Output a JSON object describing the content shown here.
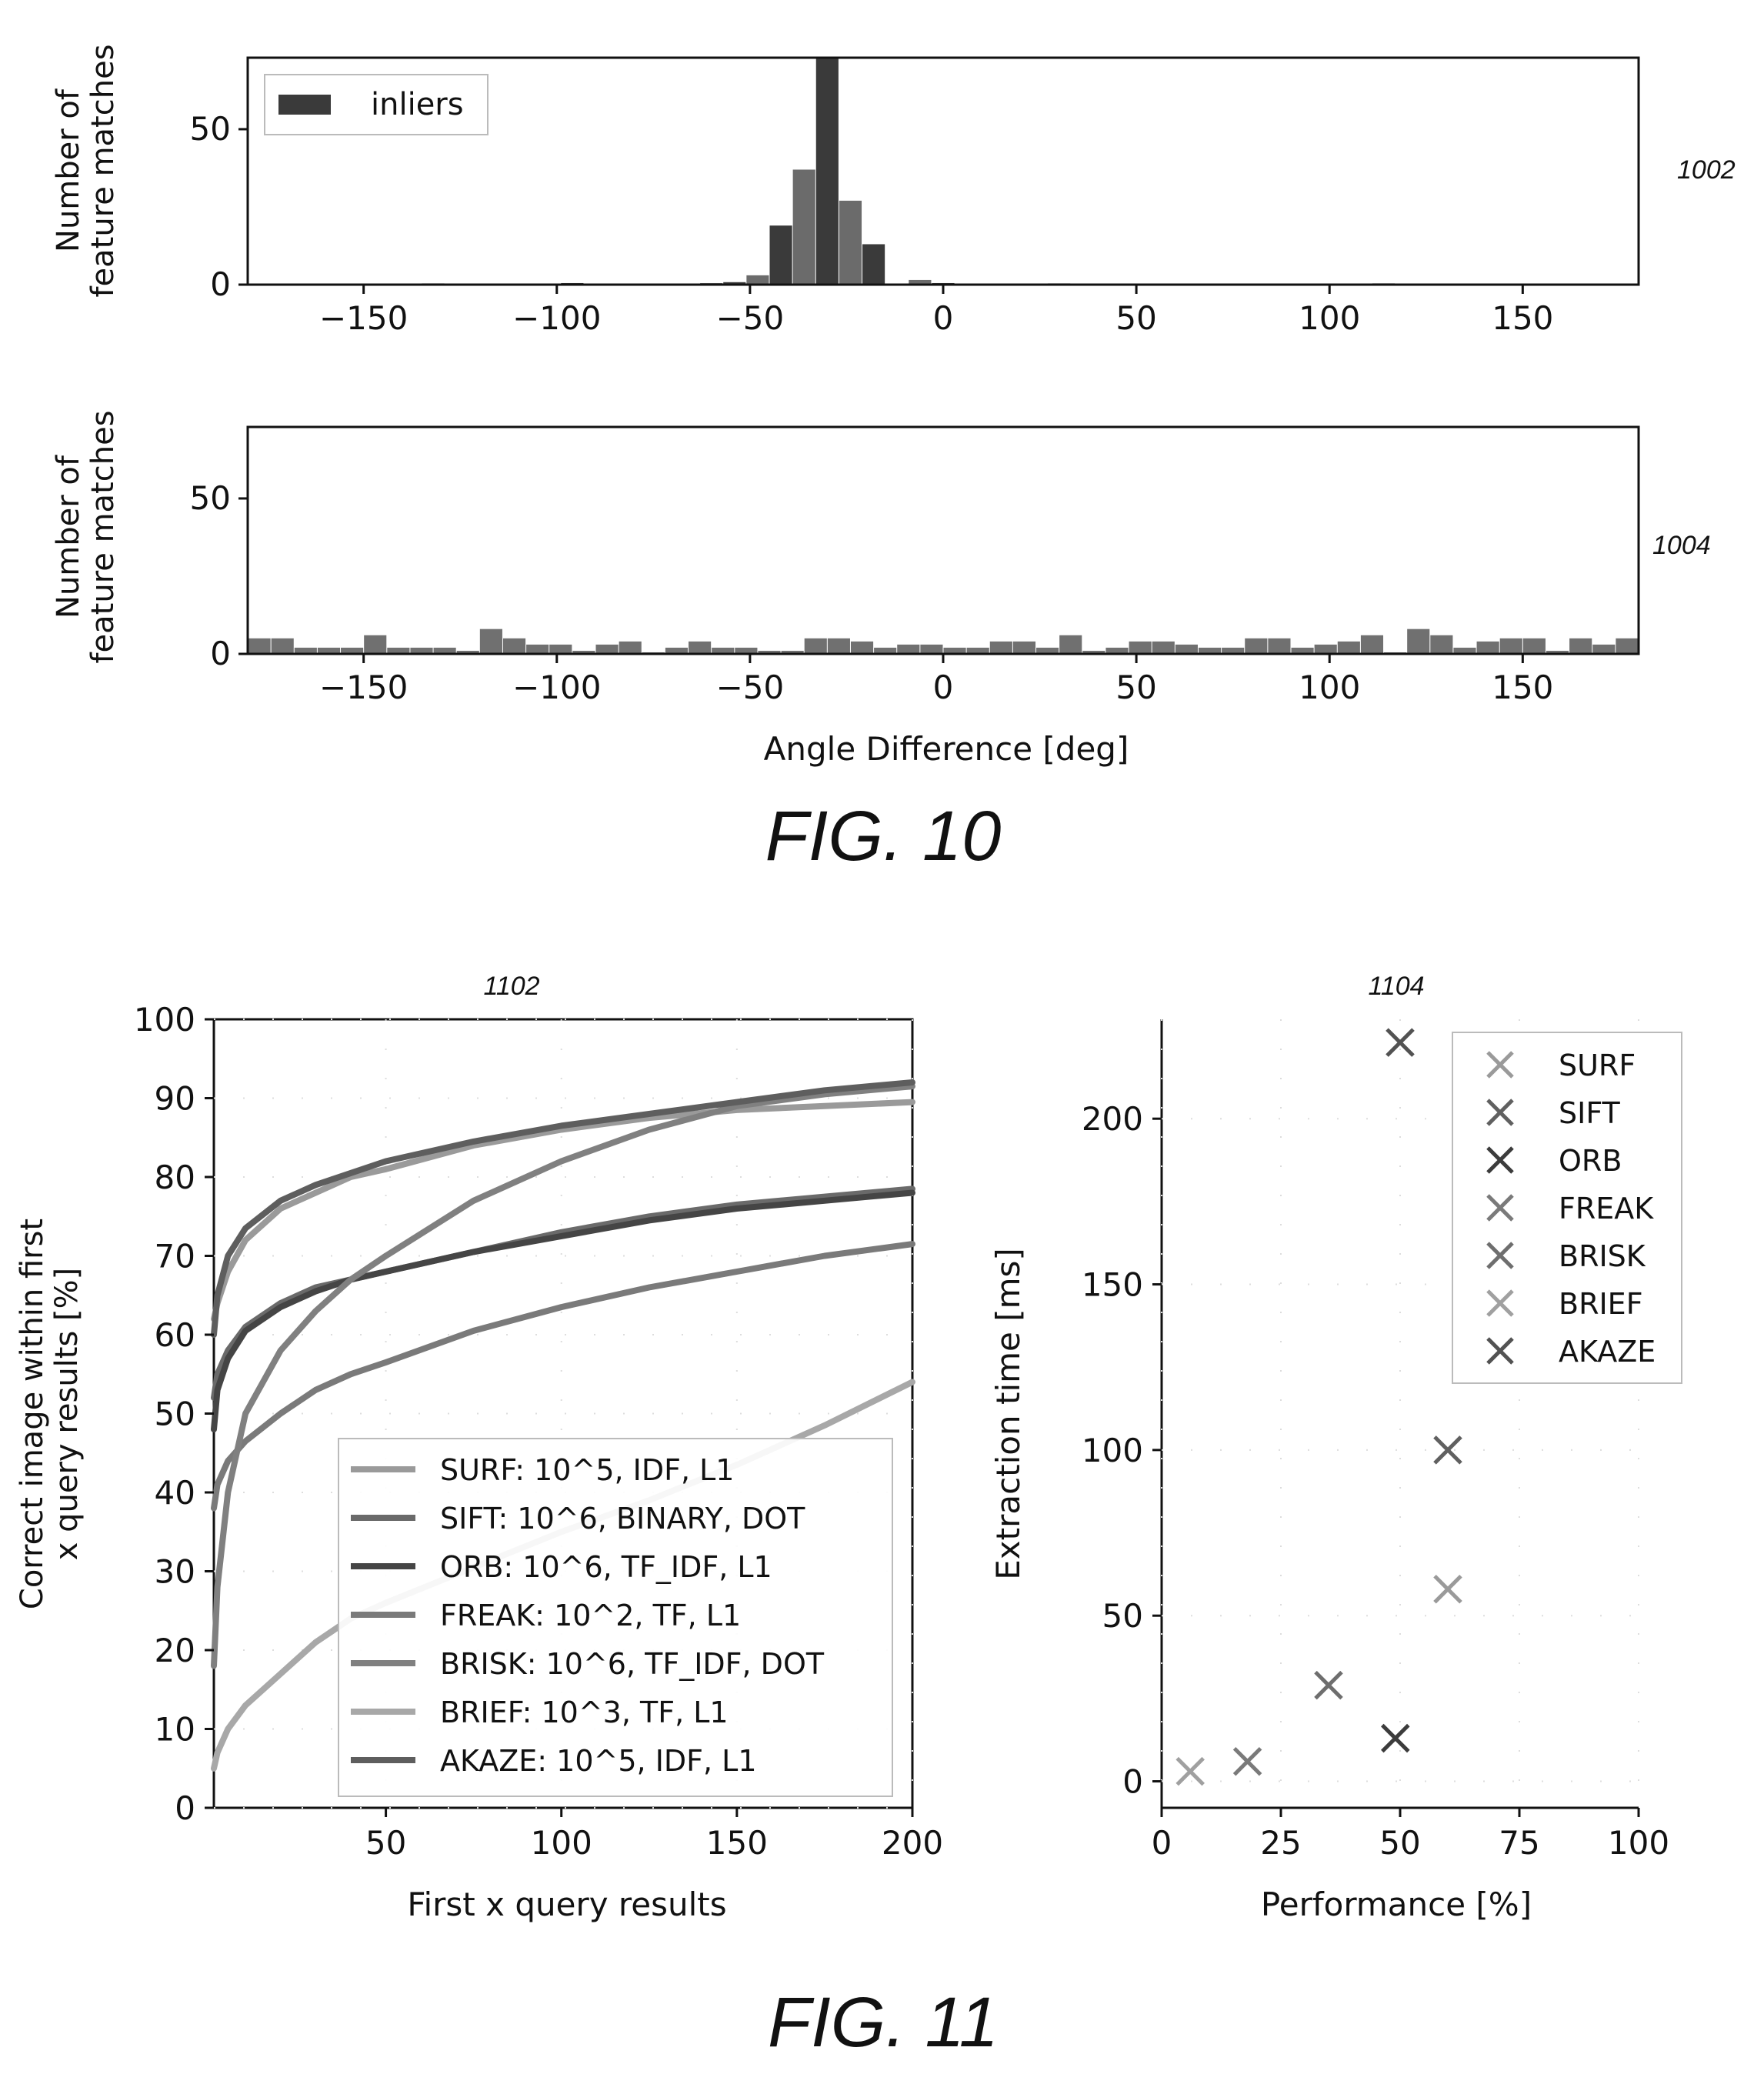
{
  "figures": [
    {
      "caption": "FIG. 10"
    },
    {
      "caption": "FIG. 11"
    }
  ],
  "chart_data": [
    {
      "id": "1002",
      "type": "bar",
      "ref_label": "1002",
      "xlabel": "",
      "ylabel": "Number of feature matches",
      "ylabel_lines": [
        "Number of",
        "feature matches"
      ],
      "xlim": [
        -180,
        180
      ],
      "ylim": [
        0,
        73
      ],
      "xticks": [
        -150,
        -100,
        -50,
        0,
        50,
        100,
        150
      ],
      "yticks": [
        0,
        50
      ],
      "legend": [
        "inliers"
      ],
      "legend_position": "top-left",
      "bin_width": 6,
      "bars": [
        {
          "x": -162,
          "y": 0.3
        },
        {
          "x": -132,
          "y": 0.4
        },
        {
          "x": -96,
          "y": 0.5
        },
        {
          "x": -60,
          "y": 0.5
        },
        {
          "x": -54,
          "y": 0.8
        },
        {
          "x": -48,
          "y": 3
        },
        {
          "x": -42,
          "y": 19
        },
        {
          "x": -36,
          "y": 37
        },
        {
          "x": -30,
          "y": 73
        },
        {
          "x": -24,
          "y": 27
        },
        {
          "x": -18,
          "y": 13
        },
        {
          "x": -6,
          "y": 1.5
        },
        {
          "x": 0,
          "y": 0.5
        },
        {
          "x": 30,
          "y": 0.4
        },
        {
          "x": 114,
          "y": 0.4
        }
      ],
      "bar_colors": [
        "#3a3a3a",
        "#6b6b6b"
      ]
    },
    {
      "id": "1004",
      "type": "bar",
      "ref_label": "1004",
      "xlabel": "Angle Difference [deg]",
      "ylabel": "Number of feature matches",
      "ylabel_lines": [
        "Number of",
        "feature matches"
      ],
      "xlim": [
        -180,
        180
      ],
      "ylim": [
        0,
        73
      ],
      "xticks": [
        -150,
        -100,
        -50,
        0,
        50,
        100,
        150
      ],
      "yticks": [
        0,
        50
      ],
      "bin_width": 6,
      "bars": [
        {
          "x": -177,
          "y": 5
        },
        {
          "x": -171,
          "y": 5
        },
        {
          "x": -165,
          "y": 2
        },
        {
          "x": -159,
          "y": 2
        },
        {
          "x": -153,
          "y": 2
        },
        {
          "x": -147,
          "y": 6
        },
        {
          "x": -141,
          "y": 2
        },
        {
          "x": -135,
          "y": 2
        },
        {
          "x": -129,
          "y": 2
        },
        {
          "x": -123,
          "y": 1
        },
        {
          "x": -117,
          "y": 8
        },
        {
          "x": -111,
          "y": 5
        },
        {
          "x": -105,
          "y": 3
        },
        {
          "x": -99,
          "y": 3
        },
        {
          "x": -93,
          "y": 1
        },
        {
          "x": -87,
          "y": 3
        },
        {
          "x": -81,
          "y": 4
        },
        {
          "x": -75,
          "y": 0.5
        },
        {
          "x": -69,
          "y": 2
        },
        {
          "x": -63,
          "y": 4
        },
        {
          "x": -57,
          "y": 2
        },
        {
          "x": -51,
          "y": 2
        },
        {
          "x": -45,
          "y": 1
        },
        {
          "x": -39,
          "y": 1
        },
        {
          "x": -33,
          "y": 5
        },
        {
          "x": -27,
          "y": 5
        },
        {
          "x": -21,
          "y": 4
        },
        {
          "x": -15,
          "y": 2
        },
        {
          "x": -9,
          "y": 3
        },
        {
          "x": -3,
          "y": 3
        },
        {
          "x": 3,
          "y": 2
        },
        {
          "x": 9,
          "y": 2
        },
        {
          "x": 15,
          "y": 4
        },
        {
          "x": 21,
          "y": 4
        },
        {
          "x": 27,
          "y": 2
        },
        {
          "x": 33,
          "y": 6
        },
        {
          "x": 39,
          "y": 1
        },
        {
          "x": 45,
          "y": 2
        },
        {
          "x": 51,
          "y": 4
        },
        {
          "x": 57,
          "y": 4
        },
        {
          "x": 63,
          "y": 3
        },
        {
          "x": 69,
          "y": 2
        },
        {
          "x": 75,
          "y": 2
        },
        {
          "x": 81,
          "y": 5
        },
        {
          "x": 87,
          "y": 5
        },
        {
          "x": 93,
          "y": 2
        },
        {
          "x": 99,
          "y": 3
        },
        {
          "x": 105,
          "y": 4
        },
        {
          "x": 111,
          "y": 6
        },
        {
          "x": 117,
          "y": 0.5
        },
        {
          "x": 123,
          "y": 8
        },
        {
          "x": 129,
          "y": 6
        },
        {
          "x": 135,
          "y": 2
        },
        {
          "x": 141,
          "y": 4
        },
        {
          "x": 147,
          "y": 5
        },
        {
          "x": 153,
          "y": 5
        },
        {
          "x": 159,
          "y": 1
        },
        {
          "x": 165,
          "y": 5
        },
        {
          "x": 171,
          "y": 3
        },
        {
          "x": 177,
          "y": 5
        }
      ],
      "bar_color": "#707070"
    },
    {
      "id": "1102",
      "type": "line",
      "ref_label": "1102",
      "xlabel": "First x query results",
      "ylabel": "Correct image within first x query results [%]",
      "ylabel_lines": [
        "Correct image within first",
        "x query results [%]"
      ],
      "xlim": [
        1,
        200
      ],
      "ylim": [
        0,
        100
      ],
      "xticks": [
        50,
        100,
        150,
        200
      ],
      "yticks": [
        0,
        10,
        20,
        30,
        40,
        50,
        60,
        70,
        80,
        90,
        100
      ],
      "legend_position": "lower-right",
      "x": [
        1,
        2,
        5,
        10,
        20,
        30,
        40,
        50,
        75,
        100,
        125,
        150,
        175,
        200
      ],
      "series": [
        {
          "name": "SURF: 10^5, IDF, L1",
          "color": "#9a9a9a",
          "values": [
            62,
            64,
            68,
            72,
            76,
            78,
            80,
            81,
            84,
            86,
            87.5,
            88.5,
            89,
            89.5
          ]
        },
        {
          "name": "SIFT: 10^6, BINARY, DOT",
          "color": "#6a6a6a",
          "values": [
            52,
            55,
            58,
            61,
            64,
            66,
            67,
            68,
            70.5,
            73,
            75,
            76.5,
            77.5,
            78.5
          ]
        },
        {
          "name": "ORB: 10^6, TF_IDF, L1",
          "color": "#454545",
          "values": [
            48,
            53,
            57,
            60.5,
            63.5,
            65.5,
            67,
            68,
            70.5,
            72.5,
            74.5,
            76,
            77,
            78
          ]
        },
        {
          "name": "FREAK: 10^2, TF, L1",
          "color": "#7a7a7a",
          "values": [
            38,
            41,
            44,
            46.5,
            50,
            53,
            55,
            56.5,
            60.5,
            63.5,
            66,
            68,
            70,
            71.5
          ]
        },
        {
          "name": "BRISK: 10^6, TF_IDF, DOT",
          "color": "#808080",
          "values": [
            18,
            28,
            40,
            50,
            58,
            63,
            67,
            70,
            77,
            82,
            86,
            89,
            90.5,
            91.5
          ]
        },
        {
          "name": "BRIEF: 10^3, TF, L1",
          "color": "#a8a8a8",
          "values": [
            5,
            7,
            10,
            13,
            17,
            21,
            24,
            26,
            30.5,
            35,
            39,
            43.5,
            48.5,
            54
          ]
        },
        {
          "name": "AKAZE: 10^5, IDF, L1",
          "color": "#5e5e5e",
          "values": [
            60,
            65,
            70,
            73.5,
            77,
            79,
            80.5,
            82,
            84.5,
            86.5,
            88,
            89.5,
            91,
            92
          ]
        }
      ]
    },
    {
      "id": "1104",
      "type": "scatter",
      "ref_label": "1104",
      "xlabel": "Performance [%]",
      "ylabel": "Extraction time [ms]",
      "xlim": [
        0,
        100
      ],
      "ylim": [
        -8,
        230
      ],
      "xticks": [
        0,
        25,
        50,
        75,
        100
      ],
      "yticks": [
        0,
        50,
        100,
        150,
        200
      ],
      "legend_position": "top-right",
      "series": [
        {
          "name": "SURF",
          "color": "#9a9a9a",
          "points": [
            {
              "x": 60,
              "y": 58
            }
          ]
        },
        {
          "name": "SIFT",
          "color": "#606060",
          "points": [
            {
              "x": 60,
              "y": 100
            }
          ]
        },
        {
          "name": "ORB",
          "color": "#3c3c3c",
          "points": [
            {
              "x": 49,
              "y": 13
            }
          ]
        },
        {
          "name": "FREAK",
          "color": "#7a7a7a",
          "points": [
            {
              "x": 18,
              "y": 6
            }
          ]
        },
        {
          "name": "BRISK",
          "color": "#6e6e6e",
          "points": [
            {
              "x": 35,
              "y": 29
            }
          ]
        },
        {
          "name": "BRIEF",
          "color": "#a0a0a0",
          "points": [
            {
              "x": 6,
              "y": 3
            }
          ]
        },
        {
          "name": "AKAZE",
          "color": "#525252",
          "points": [
            {
              "x": 50,
              "y": 223
            }
          ]
        }
      ]
    }
  ]
}
